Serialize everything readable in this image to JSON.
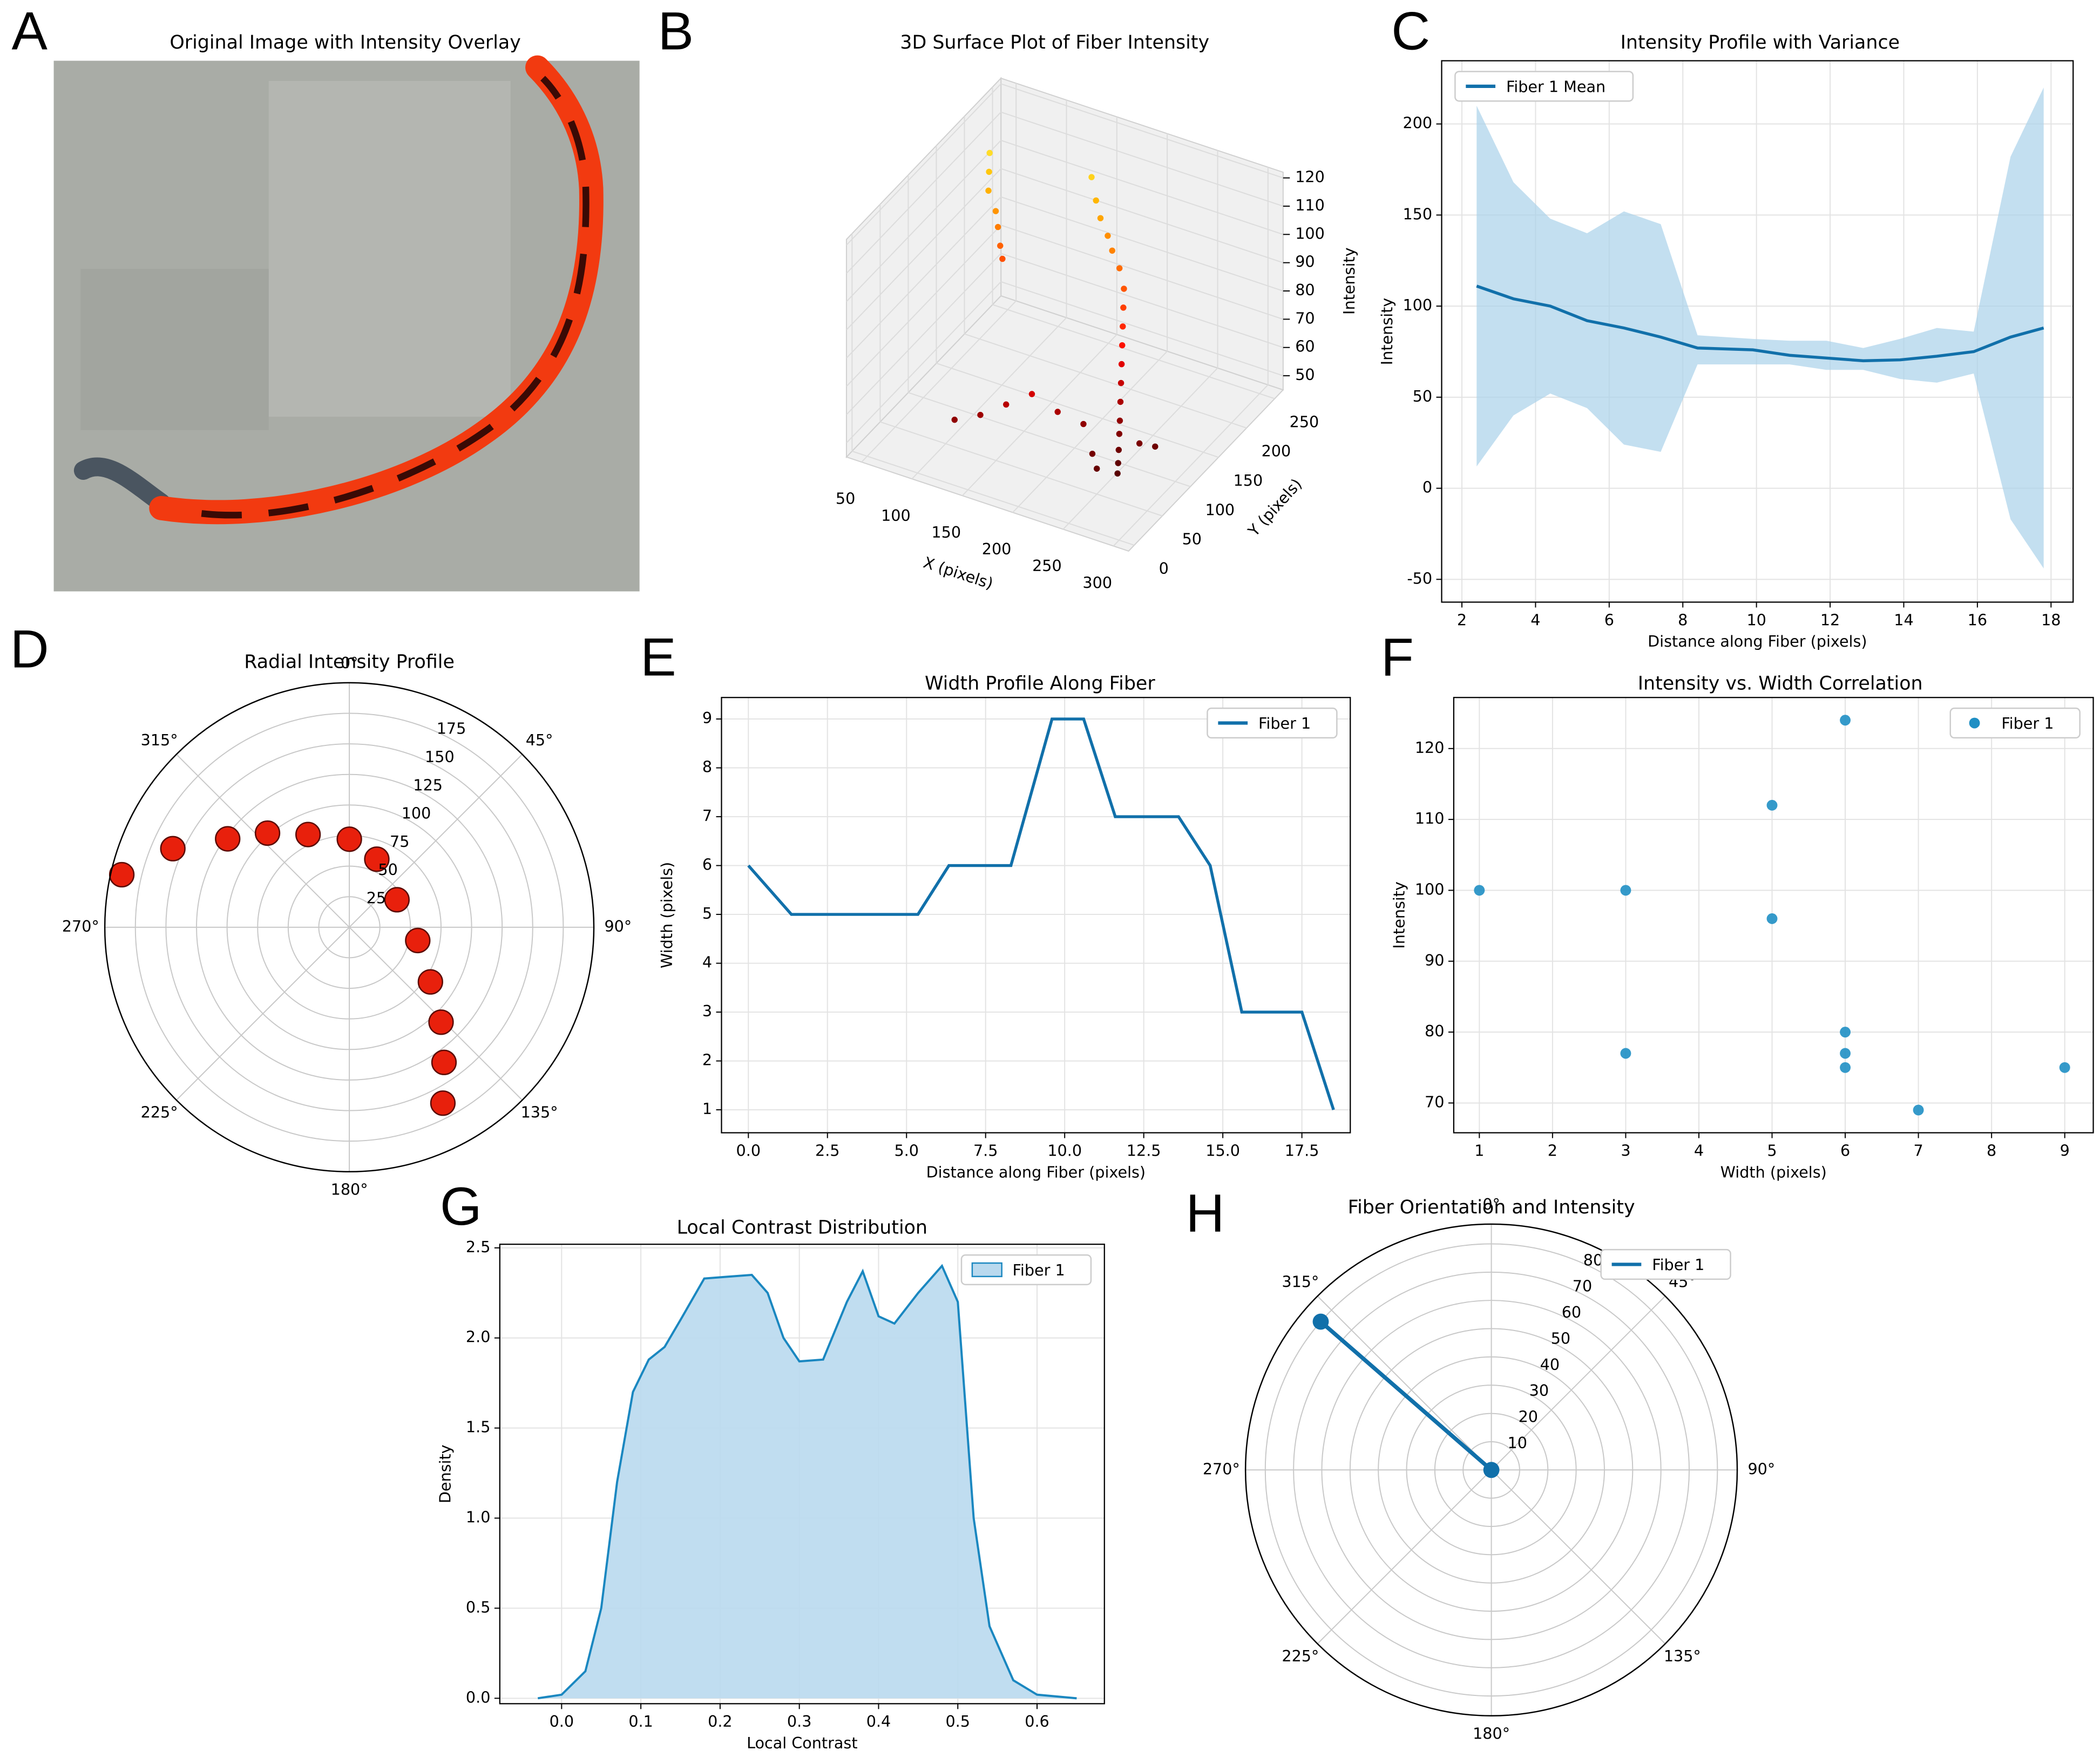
{
  "chart_data": [
    {
      "type": "image",
      "panel": "A",
      "title": "Original Image with Intensity Overlay"
    },
    {
      "type": "scatter3d",
      "panel": "B",
      "title": "3D Surface Plot of Fiber Intensity",
      "xlabel": "X (pixels)",
      "ylabel": "Y (pixels)",
      "zlabel": "Intensity",
      "colormap": "hot",
      "x": [
        60,
        65,
        70,
        80,
        85,
        90,
        95,
        150,
        160,
        170,
        180,
        190,
        200,
        210,
        215,
        220,
        225,
        230,
        235,
        240,
        245,
        250,
        255,
        260,
        265,
        180,
        160,
        140,
        120,
        200,
        220,
        240,
        250,
        270,
        280
      ],
      "y": [
        200,
        190,
        180,
        175,
        170,
        165,
        160,
        220,
        210,
        200,
        195,
        185,
        180,
        170,
        160,
        150,
        140,
        130,
        120,
        110,
        100,
        90,
        80,
        70,
        60,
        60,
        50,
        40,
        30,
        70,
        80,
        60,
        50,
        90,
        100
      ],
      "z": [
        112,
        108,
        104,
        99,
        95,
        90,
        87,
        110,
        105,
        102,
        98,
        96,
        92,
        88,
        84,
        80,
        76,
        72,
        68,
        64,
        60,
        58,
        55,
        53,
        52,
        70,
        66,
        62,
        60,
        64,
        60,
        56,
        54,
        57,
        55
      ],
      "xlim": [
        35,
        315
      ],
      "ylim": [
        -10,
        265
      ],
      "zlim": [
        45,
        122
      ],
      "xticks": [
        50,
        100,
        150,
        200,
        250,
        300
      ],
      "yticks": [
        0,
        50,
        100,
        150,
        200,
        250
      ],
      "zticks": [
        50,
        60,
        70,
        80,
        90,
        100,
        110,
        120
      ]
    },
    {
      "type": "line",
      "panel": "C",
      "title": "Intensity Profile with Variance",
      "xlabel": "Distance along Fiber (pixels)",
      "ylabel": "Intensity",
      "x": [
        2.4,
        3.4,
        4.4,
        5.4,
        6.4,
        7.4,
        8.4,
        9.9,
        10.9,
        11.9,
        12.9,
        13.9,
        14.9,
        15.9,
        16.9,
        17.8
      ],
      "series": [
        {
          "name": "Fiber 1 Mean",
          "color": "#1170aa",
          "band_color": "#a9d1ea",
          "values": [
            111,
            104,
            100,
            92,
            88,
            83,
            77,
            76,
            73,
            71.5,
            70,
            70.5,
            72.5,
            75,
            83,
            88
          ],
          "lower": [
            12,
            40,
            52,
            44,
            24,
            20,
            68,
            68,
            68,
            65,
            65,
            60,
            58,
            63,
            -17,
            -44
          ],
          "upper": [
            210,
            168,
            148,
            140,
            152,
            145,
            84,
            82,
            81,
            81,
            77,
            82,
            88,
            86,
            182,
            220
          ]
        }
      ],
      "xlim": [
        1.45,
        18.6
      ],
      "ylim": [
        -62.5,
        234.7
      ],
      "xticks": [
        2,
        4,
        6,
        8,
        10,
        12,
        14,
        16,
        18
      ],
      "yticks": [
        -50,
        0,
        50,
        100,
        150,
        200
      ],
      "grid": true,
      "legend": "upper left"
    },
    {
      "type": "polar",
      "panel": "D",
      "title": "Radial Intensity Profile",
      "series": [
        {
          "color": "#e8200c",
          "mode": "markers",
          "theta": [
            283,
            294,
            306,
            319,
            336,
            0,
            22,
            60,
            101,
            124,
            136,
            145,
            152
          ],
          "r": [
            191,
            158,
            123,
            102,
            83,
            72,
            60,
            45,
            57,
            80,
            108,
            135,
            163
          ]
        }
      ],
      "rlim": [
        0,
        200
      ],
      "rticks": [
        25,
        50,
        75,
        100,
        125,
        150,
        175
      ],
      "thetaticks": [
        {
          "value": 0,
          "label": "0°"
        },
        {
          "value": 45,
          "label": "45°"
        },
        {
          "value": 90,
          "label": "90°"
        },
        {
          "value": 135,
          "label": "135°"
        },
        {
          "value": 180,
          "label": "180°"
        },
        {
          "value": 225,
          "label": "225°"
        },
        {
          "value": 270,
          "label": "270°"
        },
        {
          "value": 315,
          "label": "315°"
        }
      ]
    },
    {
      "type": "line",
      "panel": "E",
      "title": "Width Profile Along Fiber",
      "xlabel": "Distance along Fiber (pixels)",
      "ylabel": "Width (pixels)",
      "x": [
        0,
        1.36,
        5.36,
        6.34,
        8.3,
        9.6,
        10.6,
        11.6,
        13.6,
        14.6,
        15.6,
        17.5,
        18.5
      ],
      "series": [
        {
          "name": "Fiber 1",
          "color": "#1170aa",
          "values": [
            6,
            5,
            5,
            6,
            6,
            9,
            9,
            7,
            7,
            6,
            3,
            3,
            1
          ]
        }
      ],
      "xlim": [
        -0.85,
        19.03
      ],
      "ylim": [
        0.53,
        9.44
      ],
      "xticks": [
        {
          "value": 0,
          "label": "0.0"
        },
        {
          "value": 2.5,
          "label": "2.5"
        },
        {
          "value": 5,
          "label": "5.0"
        },
        {
          "value": 7.5,
          "label": "7.5"
        },
        {
          "value": 10,
          "label": "10.0"
        },
        {
          "value": 12.5,
          "label": "12.5"
        },
        {
          "value": 15,
          "label": "15.0"
        },
        {
          "value": 17.5,
          "label": "17.5"
        }
      ],
      "yticks": [
        1,
        2,
        3,
        4,
        5,
        6,
        7,
        8,
        9
      ],
      "grid": true,
      "legend": "upper right"
    },
    {
      "type": "scatter",
      "panel": "F",
      "title": "Intensity vs. Width Correlation",
      "xlabel": "Width (pixels)",
      "ylabel": "Intensity",
      "x": [
        1,
        3,
        3,
        5,
        5,
        6,
        6,
        6,
        6,
        7,
        9
      ],
      "series": [
        {
          "name": "Fiber 1",
          "color": "#1f8fc4",
          "values": [
            100,
            100,
            77,
            112,
            96,
            124,
            80,
            77,
            75,
            69,
            75
          ]
        }
      ],
      "xlim": [
        0.65,
        9.39
      ],
      "ylim": [
        65.8,
        127.2
      ],
      "xticks": [
        1,
        2,
        3,
        4,
        5,
        6,
        7,
        8,
        9
      ],
      "yticks": [
        70,
        80,
        90,
        100,
        110,
        120
      ],
      "grid": true,
      "legend": "upper right"
    },
    {
      "type": "area",
      "panel": "G",
      "title": "Local Contrast Distribution",
      "xlabel": "Local Contrast",
      "ylabel": "Density",
      "x": [
        -0.03,
        0,
        0.03,
        0.05,
        0.07,
        0.09,
        0.11,
        0.13,
        0.15,
        0.18,
        0.21,
        0.24,
        0.26,
        0.28,
        0.3,
        0.33,
        0.36,
        0.38,
        0.4,
        0.42,
        0.45,
        0.48,
        0.5,
        0.52,
        0.54,
        0.57,
        0.6,
        0.65
      ],
      "series": [
        {
          "name": "Fiber 1",
          "color": "#1a87c0",
          "fill_color": "#b9d9ee",
          "values": [
            0,
            0.02,
            0.15,
            0.5,
            1.2,
            1.7,
            1.88,
            1.95,
            2.1,
            2.33,
            2.34,
            2.35,
            2.25,
            2,
            1.87,
            1.88,
            2.2,
            2.37,
            2.12,
            2.08,
            2.25,
            2.4,
            2.2,
            1,
            0.4,
            0.1,
            0.02,
            0
          ]
        }
      ],
      "xlim": [
        -0.078,
        0.685
      ],
      "ylim": [
        -0.03,
        2.52
      ],
      "xticks": [
        {
          "value": 0,
          "label": "0.0"
        },
        {
          "value": 0.1,
          "label": "0.1"
        },
        {
          "value": 0.2,
          "label": "0.2"
        },
        {
          "value": 0.3,
          "label": "0.3"
        },
        {
          "value": 0.4,
          "label": "0.4"
        },
        {
          "value": 0.5,
          "label": "0.5"
        },
        {
          "value": 0.6,
          "label": "0.6"
        }
      ],
      "yticks": [
        {
          "value": 0,
          "label": "0.0"
        },
        {
          "value": 0.5,
          "label": "0.5"
        },
        {
          "value": 1,
          "label": "1.0"
        },
        {
          "value": 1.5,
          "label": "1.5"
        },
        {
          "value": 2,
          "label": "2.0"
        },
        {
          "value": 2.5,
          "label": "2.5"
        }
      ],
      "grid": true,
      "legend": "upper right"
    },
    {
      "type": "polar",
      "panel": "H",
      "title": "Fiber Orientation and Intensity",
      "series": [
        {
          "name": "Fiber 1",
          "color": "#1170aa",
          "mode": "lines+markers",
          "theta": [
            311,
            311
          ],
          "r": [
            0,
            80
          ]
        }
      ],
      "rlim": [
        0,
        87
      ],
      "rticks": [
        10,
        20,
        30,
        40,
        50,
        60,
        70,
        80
      ],
      "thetaticks": [
        {
          "value": 0,
          "label": "0°"
        },
        {
          "value": 45,
          "label": "45°"
        },
        {
          "value": 90,
          "label": "90°"
        },
        {
          "value": 135,
          "label": "135°"
        },
        {
          "value": 180,
          "label": "180°"
        },
        {
          "value": 225,
          "label": "225°"
        },
        {
          "value": 270,
          "label": "270°"
        },
        {
          "value": 315,
          "label": "315°"
        }
      ],
      "legend": "upper right"
    }
  ]
}
